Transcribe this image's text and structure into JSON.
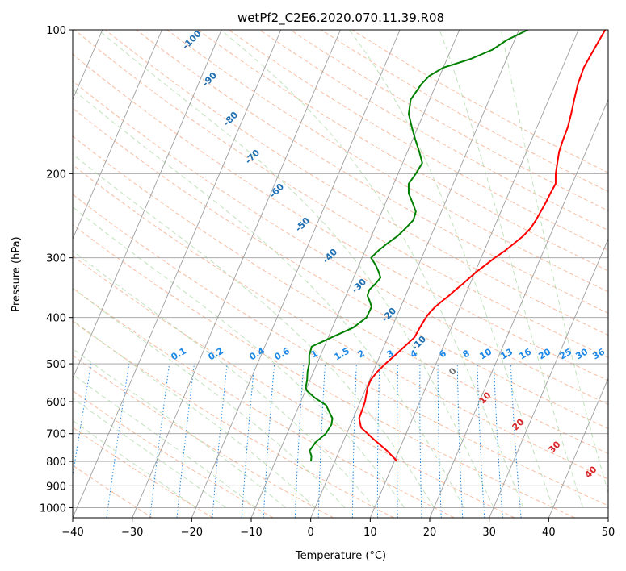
{
  "chart_data": {
    "type": "line",
    "title": "wetPf2_C2E6.2020.070.11.39.R08",
    "xlabel": "Temperature (°C)",
    "ylabel": "Pressure (hPa)",
    "xlim": [
      -40,
      50
    ],
    "ylim": [
      1050,
      100
    ],
    "y_scale": "log",
    "grid": true,
    "x_ticks": [
      -40,
      -30,
      -20,
      -10,
      0,
      10,
      20,
      30,
      40,
      50
    ],
    "y_ticks": [
      1000,
      900,
      800,
      700,
      600,
      500,
      400,
      300,
      200,
      100
    ],
    "series": [
      {
        "color": "#ff0000",
        "points": [
          [
            10.5,
            800
          ],
          [
            8,
            760
          ],
          [
            5,
            720
          ],
          [
            2,
            680
          ],
          [
            1,
            650
          ],
          [
            0.9,
            620
          ],
          [
            0.8,
            600
          ],
          [
            0.5,
            580
          ],
          [
            0.2,
            560
          ],
          [
            0.2,
            540
          ],
          [
            0.7,
            520
          ],
          [
            1.5,
            500
          ],
          [
            2.5,
            480
          ],
          [
            3.5,
            460
          ],
          [
            4.5,
            440
          ],
          [
            4.7,
            420
          ],
          [
            5,
            400
          ],
          [
            5.3,
            390
          ],
          [
            5.8,
            380
          ],
          [
            6.5,
            370
          ],
          [
            7.3,
            360
          ],
          [
            8,
            350
          ],
          [
            8.8,
            340
          ],
          [
            9.5,
            330
          ],
          [
            10.3,
            320
          ],
          [
            11.3,
            310
          ],
          [
            12.3,
            300
          ],
          [
            13.5,
            290
          ],
          [
            14.5,
            280
          ],
          [
            15.5,
            270
          ],
          [
            16.2,
            260
          ],
          [
            16.5,
            250
          ],
          [
            16.7,
            240
          ],
          [
            16.9,
            230
          ],
          [
            17,
            220
          ],
          [
            17.2,
            210
          ],
          [
            16.5,
            200
          ],
          [
            16,
            190
          ],
          [
            15.5,
            180
          ],
          [
            15.3,
            170
          ],
          [
            15.2,
            160
          ],
          [
            14.8,
            150
          ],
          [
            14.3,
            140
          ],
          [
            13.8,
            130
          ],
          [
            13.6,
            120
          ],
          [
            14,
            110
          ],
          [
            14.5,
            100
          ]
        ]
      },
      {
        "color": "#008000",
        "points": [
          [
            -4,
            800
          ],
          [
            -4.3,
            780
          ],
          [
            -5,
            760
          ],
          [
            -4.6,
            730
          ],
          [
            -3.5,
            700
          ],
          [
            -3.2,
            670
          ],
          [
            -3.5,
            650
          ],
          [
            -4.5,
            630
          ],
          [
            -5.5,
            610
          ],
          [
            -7.8,
            590
          ],
          [
            -9.7,
            570
          ],
          [
            -10.2,
            560
          ],
          [
            -10.5,
            540
          ],
          [
            -11,
            520
          ],
          [
            -11.3,
            500
          ],
          [
            -11.9,
            480
          ],
          [
            -12.1,
            460
          ],
          [
            -9.4,
            440
          ],
          [
            -6.5,
            420
          ],
          [
            -5,
            400
          ],
          [
            -4.9,
            380
          ],
          [
            -5.6,
            370
          ],
          [
            -6.4,
            360
          ],
          [
            -6.5,
            350
          ],
          [
            -5.9,
            340
          ],
          [
            -5.5,
            330
          ],
          [
            -6.3,
            320
          ],
          [
            -7.3,
            310
          ],
          [
            -8.5,
            300
          ],
          [
            -7.8,
            290
          ],
          [
            -6.8,
            280
          ],
          [
            -5.6,
            270
          ],
          [
            -4.8,
            260
          ],
          [
            -4.1,
            250
          ],
          [
            -4.3,
            240
          ],
          [
            -5.5,
            230
          ],
          [
            -6.8,
            220
          ],
          [
            -7.5,
            210
          ],
          [
            -7,
            200
          ],
          [
            -6.7,
            190
          ],
          [
            -8,
            180
          ],
          [
            -9.5,
            170
          ],
          [
            -11,
            160
          ],
          [
            -12.5,
            150
          ],
          [
            -13.2,
            140
          ],
          [
            -12.5,
            130
          ],
          [
            -11.8,
            125
          ],
          [
            -10,
            120
          ],
          [
            -6,
            115
          ],
          [
            -3,
            110
          ],
          [
            -1.3,
            105
          ],
          [
            1.5,
            100
          ]
        ]
      }
    ],
    "dry_adiabat_labels": [
      "-100",
      "-90",
      "-80",
      "-70",
      "-60",
      "-50",
      "-40",
      "-30",
      "-20",
      "-10",
      "0",
      "10",
      "20",
      "30",
      "40"
    ],
    "mixing_ratio_labels": [
      "0.1",
      "0.2",
      "0.4",
      "0.6",
      "1",
      "1.5",
      "2",
      "3",
      "4",
      "6",
      "8",
      "10",
      "13",
      "16",
      "20",
      "25",
      "30",
      "36"
    ]
  }
}
